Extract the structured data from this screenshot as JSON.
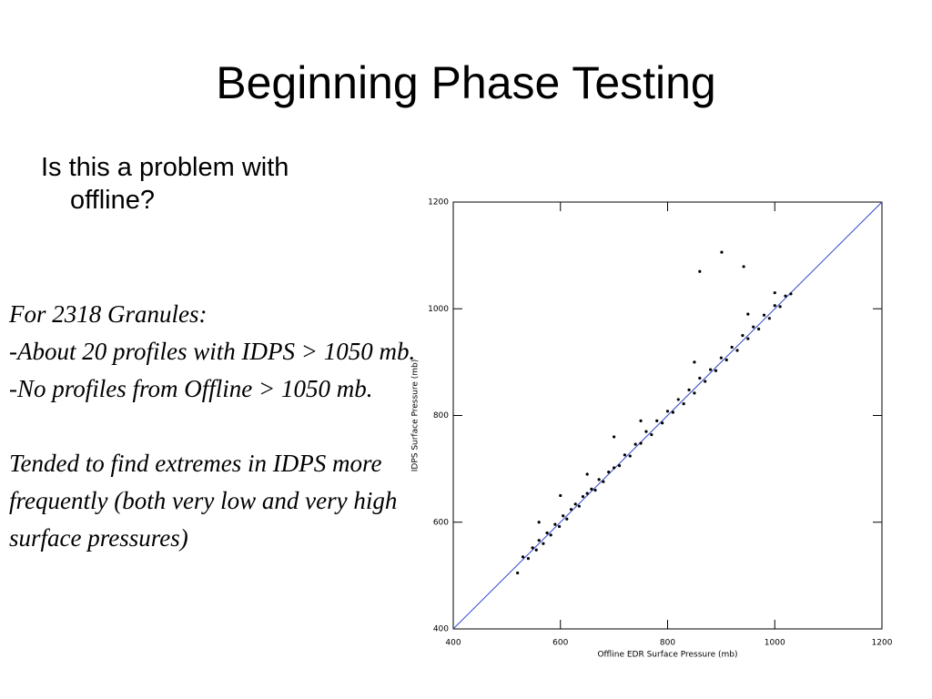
{
  "title": "Beginning Phase Testing",
  "bullet": "Is this a problem with offline?",
  "notes": [
    "For 2318 Granules:",
    "-About 20 profiles with IDPS > 1050 mb.",
    "-No profiles from Offline > 1050 mb.",
    "Tended to find extremes in IDPS more frequently (both very low and very high surface pressures)"
  ],
  "chart_data": {
    "type": "scatter",
    "x_label": "Offline EDR Surface Pressure (mb)",
    "y_label": "IDPS Surface Pressure (mb)",
    "xlim": [
      400,
      1200
    ],
    "ylim": [
      400,
      1200
    ],
    "xticks": [
      400,
      600,
      800,
      1000,
      1200
    ],
    "yticks": [
      400,
      600,
      800,
      1000,
      1200
    ],
    "color": "#000000",
    "line_color": "#3344cc",
    "x": [
      530,
      540,
      548,
      555,
      560,
      568,
      575,
      582,
      590,
      598,
      605,
      612,
      620,
      628,
      635,
      642,
      650,
      658,
      665,
      672,
      680,
      690,
      700,
      710,
      720,
      730,
      740,
      750,
      760,
      770,
      780,
      790,
      800,
      810,
      820,
      830,
      840,
      850,
      860,
      870,
      880,
      890,
      900,
      910,
      920,
      930,
      940,
      950,
      960,
      970,
      980,
      990,
      1000,
      1010,
      1020,
      1030,
      600,
      700,
      860,
      901,
      942,
      520,
      560,
      650,
      750,
      850,
      950,
      1000
    ],
    "y": [
      535,
      532,
      552,
      548,
      566,
      560,
      580,
      576,
      596,
      592,
      612,
      606,
      624,
      634,
      630,
      648,
      654,
      662,
      660,
      680,
      676,
      694,
      702,
      706,
      726,
      724,
      746,
      748,
      770,
      764,
      790,
      786,
      808,
      806,
      830,
      822,
      848,
      842,
      870,
      864,
      886,
      884,
      908,
      904,
      928,
      922,
      950,
      944,
      966,
      962,
      988,
      982,
      1006,
      1004,
      1024,
      1028,
      650,
      760,
      1070,
      1106,
      1079,
      505,
      600,
      690,
      790,
      900,
      990,
      1030
    ]
  }
}
